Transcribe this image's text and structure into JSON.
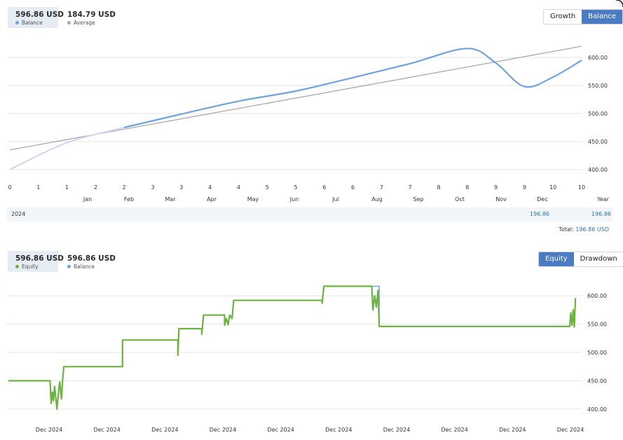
{
  "colors": {
    "balance_line": "#6fa3e0",
    "average_line": "#aaaaaa",
    "balance_faded": "#cdd7ef",
    "equity_line": "#6db33f",
    "grid": "#e6e6e6",
    "active_button": "#4a7bc3",
    "value_blue": "#2f73b4"
  },
  "top_panel": {
    "stats": [
      {
        "value": "596.86 USD",
        "label": "Balance",
        "dot": "#6fa3e0"
      },
      {
        "value": "184.79 USD",
        "label": "Average",
        "dot": "#aaaaaa"
      }
    ],
    "toggle": [
      {
        "label": "Growth",
        "active": false
      },
      {
        "label": "Balance",
        "active": true
      }
    ]
  },
  "bottom_panel": {
    "stats": [
      {
        "value": "596.86 USD",
        "label": "Equity",
        "dot": "#6db33f"
      },
      {
        "value": "596.86 USD",
        "label": "Balance",
        "dot": "#6fa3e0"
      }
    ],
    "toggle": [
      {
        "label": "Equity",
        "active": true
      },
      {
        "label": "Drawdown",
        "active": false
      }
    ]
  },
  "year_table": {
    "year": "2024",
    "month_value": "196.86",
    "year_value": "196.86",
    "total_label": "Total:",
    "total_value": "196.86 USD"
  },
  "chart_data": [
    {
      "type": "line",
      "ylim": [
        380,
        640
      ],
      "yticks": [
        "400.00",
        "450.00",
        "500.00",
        "550.00",
        "600.00"
      ],
      "ytick_values": [
        400,
        450,
        500,
        550,
        600
      ],
      "x_trades": [
        "0",
        "1",
        "1",
        "2",
        "2",
        "3",
        "3",
        "4",
        "4",
        "5",
        "5",
        "6",
        "6",
        "7",
        "7",
        "8",
        "8",
        "9",
        "9",
        "10",
        "10"
      ],
      "x_months": [
        "Jan",
        "Feb",
        "Mar",
        "Apr",
        "May",
        "Jun",
        "Jul",
        "Aug",
        "Sep",
        "Oct",
        "Nov",
        "Dec"
      ],
      "xlabel": "Year",
      "series": [
        {
          "name": "Balance",
          "points": [
            [
              0,
              400
            ],
            [
              1,
              448
            ],
            [
              2,
              475
            ],
            [
              3,
              499
            ],
            [
              4,
              522
            ],
            [
              5,
              540
            ],
            [
              6,
              564
            ],
            [
              7,
              589
            ],
            [
              8,
              616
            ],
            [
              8.5,
              590
            ],
            [
              9,
              548
            ],
            [
              9.5,
              565
            ],
            [
              10,
              595
            ]
          ]
        },
        {
          "name": "Average",
          "points": [
            [
              0,
              435
            ],
            [
              10,
              620
            ]
          ]
        }
      ]
    },
    {
      "type": "line",
      "ylim": [
        385,
        630
      ],
      "yticks": [
        "400.00",
        "450.00",
        "500.00",
        "550.00",
        "600.00"
      ],
      "ytick_values": [
        400,
        450,
        500,
        550,
        600
      ],
      "x_labels": [
        "Dec 2024",
        "Dec 2024",
        "Dec 2024",
        "Dec 2024",
        "Dec 2024",
        "Dec 2024",
        "Dec 2024",
        "Dec 2024",
        "Dec 2024",
        "Dec 2024"
      ],
      "series": [
        {
          "name": "Equity",
          "points": [
            [
              0,
              450
            ],
            [
              0.073,
              450
            ],
            [
              0.075,
              410
            ],
            [
              0.077,
              430
            ],
            [
              0.079,
              415
            ],
            [
              0.081,
              440
            ],
            [
              0.083,
              420
            ],
            [
              0.085,
              400
            ],
            [
              0.088,
              430
            ],
            [
              0.09,
              448
            ],
            [
              0.093,
              418
            ],
            [
              0.095,
              450
            ],
            [
              0.097,
              475
            ],
            [
              0.2,
              475
            ],
            [
              0.2,
              522
            ],
            [
              0.297,
              522
            ],
            [
              0.297,
              495
            ],
            [
              0.299,
              542
            ],
            [
              0.339,
              542
            ],
            [
              0.339,
              532
            ],
            [
              0.342,
              566
            ],
            [
              0.379,
              566
            ],
            [
              0.379,
              548
            ],
            [
              0.382,
              560
            ],
            [
              0.385,
              549
            ],
            [
              0.388,
              566
            ],
            [
              0.392,
              560
            ],
            [
              0.395,
              592
            ],
            [
              0.55,
              592
            ],
            [
              0.55,
              587
            ],
            [
              0.553,
              617
            ],
            [
              0.637,
              617
            ],
            [
              0.639,
              575
            ],
            [
              0.642,
              600
            ],
            [
              0.645,
              580
            ],
            [
              0.648,
              610
            ],
            [
              0.65,
              546
            ],
            [
              0.984,
              546
            ],
            [
              0.986,
              570
            ],
            [
              0.988,
              548
            ],
            [
              0.99,
              575
            ],
            [
              0.992,
              545
            ],
            [
              0.994,
              596
            ]
          ]
        },
        {
          "name": "Balance",
          "points": [
            [
              0.637,
              617
            ],
            [
              0.65,
              617
            ],
            [
              0.65,
              546
            ]
          ]
        }
      ]
    }
  ]
}
